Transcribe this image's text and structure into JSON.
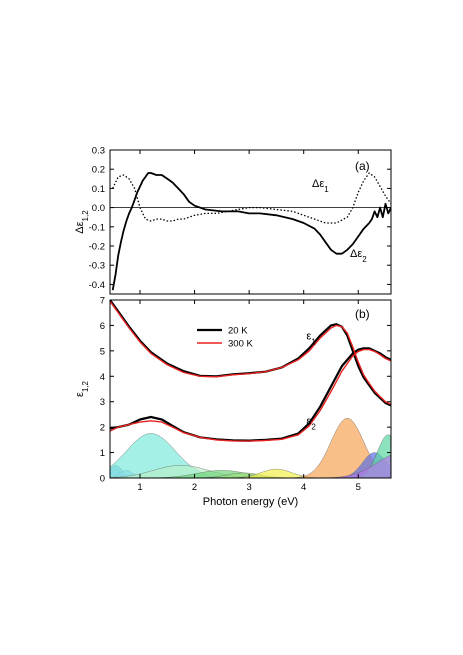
{
  "chart_data": [
    {
      "type": "line",
      "panel_label": "(a)",
      "ylabel": "Δε",
      "ylabel_sub": "1,2",
      "xlim": [
        0.45,
        5.6
      ],
      "ylim": [
        -0.45,
        0.3
      ],
      "yticks": [
        0.3,
        0.2,
        0.1,
        0.0,
        -0.1,
        -0.2,
        -0.3,
        -0.4
      ],
      "ytick_labels": [
        "0.3",
        "0.2",
        "0.1",
        "0.0",
        "-0.1",
        "-0.2",
        "-0.3",
        "-0.4"
      ],
      "zero_line": true,
      "series": [
        {
          "name": "Δε",
          "name_sub": "2",
          "style": "solid",
          "color": "#000000",
          "x": [
            0.5,
            0.55,
            0.6,
            0.65,
            0.7,
            0.75,
            0.8,
            0.85,
            0.9,
            0.95,
            1.0,
            1.05,
            1.1,
            1.15,
            1.2,
            1.3,
            1.4,
            1.5,
            1.6,
            1.7,
            1.8,
            1.9,
            2.0,
            2.2,
            2.5,
            2.8,
            3.0,
            3.2,
            3.5,
            3.8,
            4.0,
            4.2,
            4.3,
            4.4,
            4.5,
            4.6,
            4.7,
            4.8,
            4.9,
            5.0,
            5.1,
            5.2,
            5.25,
            5.3,
            5.35,
            5.4,
            5.45,
            5.5,
            5.55,
            5.6
          ],
          "y": [
            -0.43,
            -0.35,
            -0.25,
            -0.18,
            -0.12,
            -0.07,
            -0.03,
            0.0,
            0.04,
            0.08,
            0.11,
            0.14,
            0.16,
            0.18,
            0.18,
            0.17,
            0.17,
            0.15,
            0.13,
            0.1,
            0.07,
            0.03,
            0.01,
            -0.01,
            -0.02,
            -0.02,
            -0.03,
            -0.03,
            -0.04,
            -0.06,
            -0.08,
            -0.11,
            -0.14,
            -0.18,
            -0.22,
            -0.24,
            -0.24,
            -0.22,
            -0.19,
            -0.15,
            -0.11,
            -0.08,
            -0.06,
            -0.02,
            -0.05,
            0.0,
            -0.05,
            0.02,
            -0.03,
            0.0
          ]
        },
        {
          "name": "Δε",
          "name_sub": "1",
          "style": "dotted",
          "color": "#000000",
          "x": [
            0.5,
            0.6,
            0.7,
            0.8,
            0.9,
            1.0,
            1.1,
            1.2,
            1.3,
            1.4,
            1.5,
            1.6,
            1.7,
            1.8,
            2.0,
            2.2,
            2.4,
            2.6,
            2.8,
            3.0,
            3.2,
            3.5,
            3.8,
            4.0,
            4.2,
            4.4,
            4.6,
            4.8,
            4.9,
            5.0,
            5.1,
            5.2,
            5.3,
            5.4,
            5.5,
            5.6
          ],
          "y": [
            0.1,
            0.16,
            0.17,
            0.15,
            0.1,
            0.0,
            -0.06,
            -0.07,
            -0.06,
            -0.06,
            -0.07,
            -0.07,
            -0.06,
            -0.06,
            -0.04,
            -0.03,
            -0.03,
            -0.02,
            -0.01,
            0.0,
            0.0,
            -0.01,
            -0.02,
            -0.04,
            -0.06,
            -0.08,
            -0.08,
            -0.05,
            0.0,
            0.08,
            0.14,
            0.18,
            0.16,
            0.11,
            0.06,
            0.02
          ]
        }
      ]
    },
    {
      "type": "line",
      "panel_label": "(b)",
      "xlabel": "Photon energy (eV)",
      "ylabel": "ε",
      "ylabel_sub": "1,2",
      "xlim": [
        0.45,
        5.6
      ],
      "ylim": [
        0,
        7
      ],
      "xticks": [
        1,
        2,
        3,
        4,
        5
      ],
      "xtick_labels": [
        "1",
        "2",
        "3",
        "4",
        "5"
      ],
      "yticks": [
        0,
        1,
        2,
        3,
        4,
        5,
        6,
        7
      ],
      "ytick_labels": [
        "0",
        "1",
        "2",
        "3",
        "4",
        "5",
        "6",
        "7"
      ],
      "legend_position": "top-center",
      "curve_labels": [
        {
          "text": "ε",
          "sub": "1",
          "x": 4.05,
          "y": 5.45
        },
        {
          "text": "ε",
          "sub": "2",
          "x": 4.05,
          "y": 2.1
        }
      ],
      "series": [
        {
          "name": "20 K",
          "color": "#000000",
          "curves": [
            {
              "x": [
                0.45,
                0.6,
                0.8,
                1.0,
                1.2,
                1.5,
                1.8,
                2.1,
                2.4,
                2.7,
                3.0,
                3.3,
                3.6,
                3.9,
                4.1,
                4.3,
                4.5,
                4.6,
                4.7,
                4.8,
                4.9,
                5.0,
                5.1,
                5.2,
                5.3,
                5.4,
                5.5,
                5.6
              ],
              "y": [
                7.0,
                6.55,
                5.95,
                5.4,
                4.95,
                4.5,
                4.2,
                4.02,
                4.0,
                4.08,
                4.12,
                4.18,
                4.35,
                4.7,
                5.1,
                5.6,
                6.0,
                6.05,
                5.95,
                5.6,
                5.0,
                4.4,
                3.95,
                3.65,
                3.35,
                3.15,
                2.95,
                2.85
              ]
            },
            {
              "x": [
                0.45,
                0.6,
                0.8,
                1.0,
                1.2,
                1.4,
                1.6,
                1.8,
                2.1,
                2.4,
                2.7,
                3.0,
                3.3,
                3.6,
                3.9,
                4.1,
                4.3,
                4.5,
                4.7,
                4.9,
                5.0,
                5.1,
                5.2,
                5.3,
                5.4,
                5.5,
                5.6
              ],
              "y": [
                1.95,
                2.0,
                2.1,
                2.3,
                2.4,
                2.3,
                2.05,
                1.8,
                1.6,
                1.52,
                1.48,
                1.47,
                1.5,
                1.55,
                1.75,
                2.15,
                2.8,
                3.6,
                4.4,
                4.9,
                5.05,
                5.1,
                5.1,
                5.0,
                4.9,
                4.75,
                4.65
              ]
            }
          ]
        },
        {
          "name": "300 K",
          "color": "#e8211f",
          "curves": [
            {
              "x": [
                0.45,
                0.6,
                0.8,
                1.0,
                1.2,
                1.5,
                1.8,
                2.1,
                2.4,
                2.7,
                3.0,
                3.3,
                3.6,
                3.9,
                4.1,
                4.3,
                4.5,
                4.6,
                4.7,
                4.8,
                4.9,
                5.0,
                5.1,
                5.2,
                5.3,
                5.4,
                5.5,
                5.6
              ],
              "y": [
                6.95,
                6.5,
                5.9,
                5.35,
                4.9,
                4.45,
                4.15,
                4.0,
                3.98,
                4.06,
                4.1,
                4.18,
                4.35,
                4.65,
                5.0,
                5.5,
                5.9,
                6.0,
                5.95,
                5.7,
                5.15,
                4.55,
                4.05,
                3.72,
                3.42,
                3.2,
                3.0,
                2.9
              ]
            },
            {
              "x": [
                0.45,
                0.6,
                0.8,
                1.0,
                1.2,
                1.4,
                1.6,
                1.8,
                2.1,
                2.4,
                2.7,
                3.0,
                3.3,
                3.6,
                3.9,
                4.1,
                4.3,
                4.5,
                4.7,
                4.9,
                5.0,
                5.1,
                5.2,
                5.3,
                5.4,
                5.5,
                5.6
              ],
              "y": [
                1.85,
                2.0,
                2.1,
                2.2,
                2.25,
                2.2,
                2.0,
                1.78,
                1.6,
                1.5,
                1.46,
                1.45,
                1.48,
                1.52,
                1.7,
                2.05,
                2.65,
                3.4,
                4.2,
                4.8,
                4.98,
                5.05,
                5.05,
                4.98,
                4.85,
                4.7,
                4.6
              ]
            }
          ]
        }
      ],
      "oscillators": [
        {
          "center": 0.55,
          "width": 0.12,
          "amplitude": 0.5,
          "color": "#7ab4f2"
        },
        {
          "center": 0.75,
          "width": 0.12,
          "amplitude": 0.3,
          "color": "#9fc7f5"
        },
        {
          "center": 1.2,
          "width": 0.45,
          "amplitude": 1.75,
          "color": "#7de8dc"
        },
        {
          "center": 1.75,
          "width": 0.5,
          "amplitude": 0.5,
          "color": "#b5efc8"
        },
        {
          "center": 2.5,
          "width": 0.45,
          "amplitude": 0.3,
          "color": "#6fd47a"
        },
        {
          "center": 2.9,
          "width": 0.3,
          "amplitude": 0.2,
          "color": "#9ae07a"
        },
        {
          "center": 3.5,
          "width": 0.28,
          "amplitude": 0.35,
          "color": "#f2f04a"
        },
        {
          "center": 4.8,
          "width": 0.3,
          "amplitude": 2.35,
          "color": "#f7a456"
        },
        {
          "center": 5.3,
          "width": 0.22,
          "amplitude": 1.0,
          "color": "#5b70e8"
        },
        {
          "center": 5.55,
          "width": 0.2,
          "amplitude": 1.7,
          "color": "#5ad6a0"
        },
        {
          "center": 5.8,
          "width": 0.45,
          "amplitude": 1.0,
          "color": "#b17ee8"
        }
      ]
    }
  ]
}
